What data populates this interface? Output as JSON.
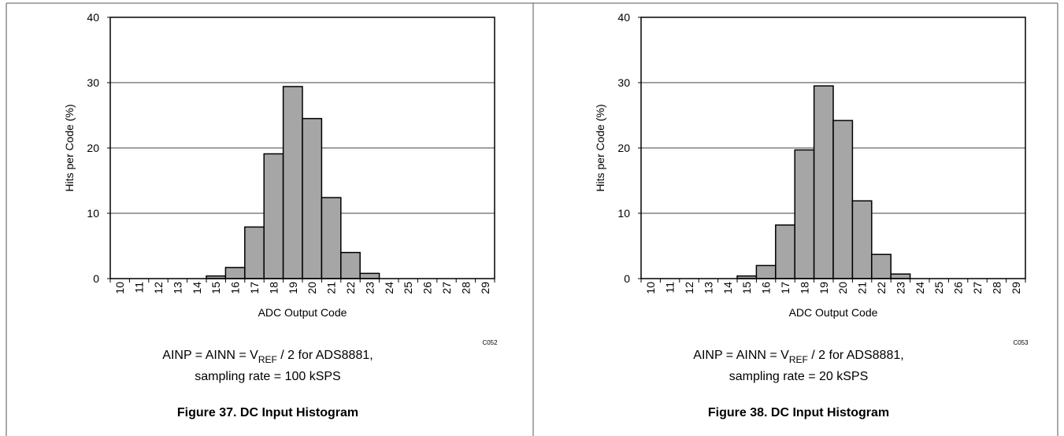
{
  "chart_data": [
    {
      "type": "bar",
      "y_label": "Hits per Code (%)",
      "x_label": "ADC Output Code",
      "code": "C052",
      "condition": {
        "before": "AINP = AINN = V",
        "subscript": "REF",
        "after": " / 2 for ADS8881,"
      },
      "condition_line2": "sampling rate = 100 kSPS",
      "figure_title": "Figure 37. DC Input Histogram",
      "categories": [
        "10",
        "11",
        "12",
        "13",
        "14",
        "15",
        "16",
        "17",
        "18",
        "19",
        "20",
        "21",
        "22",
        "23",
        "24",
        "25",
        "26",
        "27",
        "28",
        "29"
      ],
      "values": [
        0,
        0,
        0,
        0,
        0,
        0.4,
        1.7,
        7.9,
        19.1,
        29.4,
        24.5,
        12.4,
        4.0,
        0.8,
        0,
        0,
        0,
        0,
        0,
        0
      ],
      "color": "#a6a6a6",
      "ylim": [
        0,
        40
      ],
      "yticks": [
        0,
        10,
        20,
        30,
        40
      ],
      "grid": true
    },
    {
      "type": "bar",
      "y_label": "Hits per Code (%)",
      "x_label": "ADC Output Code",
      "code": "C053",
      "condition": {
        "before": "AINP = AINN = V",
        "subscript": "REF",
        "after": " / 2 for ADS8881,"
      },
      "condition_line2": "sampling rate = 20 kSPS",
      "figure_title": "Figure 38. DC Input Histogram",
      "categories": [
        "10",
        "11",
        "12",
        "13",
        "14",
        "15",
        "16",
        "17",
        "18",
        "19",
        "20",
        "21",
        "22",
        "23",
        "24",
        "25",
        "26",
        "27",
        "28",
        "29"
      ],
      "values": [
        0,
        0,
        0,
        0,
        0,
        0.4,
        2.0,
        8.2,
        19.7,
        29.5,
        24.2,
        11.9,
        3.7,
        0.7,
        0,
        0,
        0,
        0,
        0,
        0
      ],
      "color": "#a6a6a6",
      "ylim": [
        0,
        40
      ],
      "yticks": [
        0,
        10,
        20,
        30,
        40
      ],
      "grid": true
    }
  ]
}
